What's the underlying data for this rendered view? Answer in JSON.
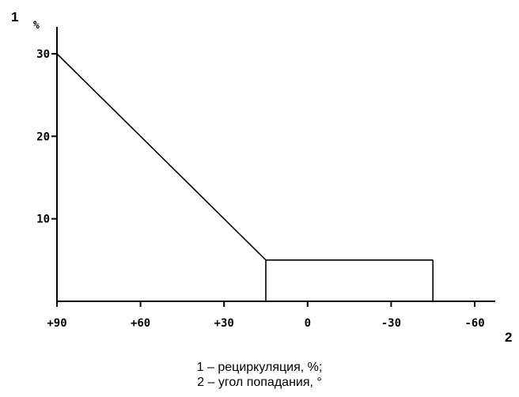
{
  "chart_data": {
    "type": "line",
    "y_axis_number": "1",
    "x_axis_number": "2",
    "y_unit": "%",
    "x_ticks": [
      {
        "value": 90,
        "label": "+90"
      },
      {
        "value": 60,
        "label": "+60"
      },
      {
        "value": 30,
        "label": "+30"
      },
      {
        "value": 0,
        "label": "0"
      },
      {
        "value": -30,
        "label": "-30"
      },
      {
        "value": -60,
        "label": "-60"
      }
    ],
    "y_ticks": [
      {
        "value": 10,
        "label": "10"
      },
      {
        "value": 20,
        "label": "20"
      },
      {
        "value": 30,
        "label": "30"
      }
    ],
    "xlim": [
      90,
      -60
    ],
    "ylim": [
      0,
      30
    ],
    "series": [
      {
        "x": [
          90,
          15,
          15,
          -45,
          -45
        ],
        "y": [
          30,
          5,
          0,
          0,
          5
        ]
      },
      {
        "x": [
          15,
          -45
        ],
        "y": [
          5,
          5
        ]
      }
    ],
    "legend_items": [
      "1 – рециркуляция, %;",
      "2 – угол попадания, °"
    ],
    "grid": false
  }
}
